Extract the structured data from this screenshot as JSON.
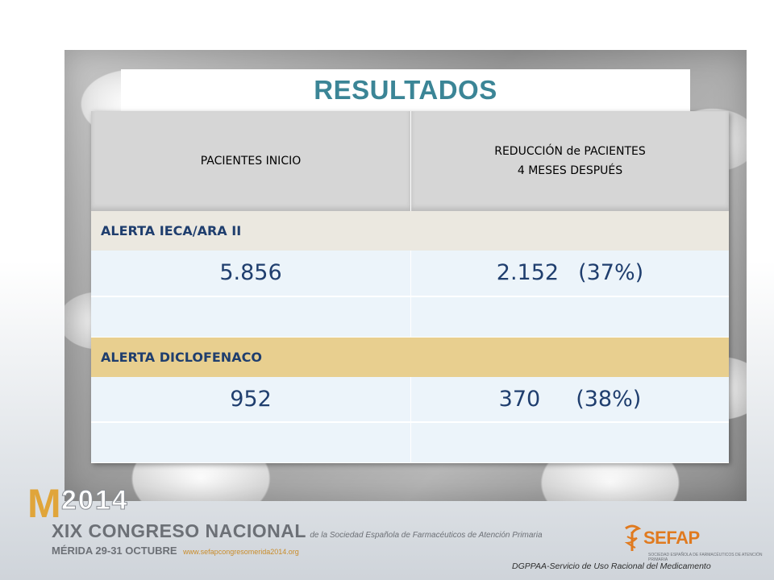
{
  "slide": {
    "title": "RESULTADOS"
  },
  "table": {
    "header_left": "PACIENTES INICIO",
    "header_right_line1": "REDUCCIÓN de PACIENTES",
    "header_right_line2": "4 MESES DESPUÉS",
    "groups": [
      {
        "label": "ALERTA IECA/ARA II",
        "start": "5.856",
        "reduction": "2.152",
        "percent": "(37%)"
      },
      {
        "label": "ALERTA DICLOFENACO",
        "start": "952",
        "reduction": "370",
        "percent": "(38%)"
      }
    ]
  },
  "footer": {
    "logo_letter": "M",
    "logo_year": "2014",
    "congress_title": "XIX CONGRESO NACIONAL",
    "congress_sub": "de la Sociedad Española de Farmacéuticos de Atención Primaria",
    "city_dates": "MÉRIDA 29-31 OCTUBRE",
    "website": "www.sefapcongresomerida2014.org",
    "sefap_logo": "SEFAP",
    "sefap_sub": "SOCIEDAD ESPAÑOLA DE FARMACÉUTICOS DE ATENCIÓN PRIMARIA",
    "note": "DGPPAA-Servicio de Uso Racional del Medicamento"
  },
  "colors": {
    "title": "#3b8596",
    "table_text": "#1f3e6e",
    "alert_1_bg": "#ebe8e0",
    "alert_2_bg": "#e8cf8f",
    "logo_orange": "#e07a1f"
  }
}
